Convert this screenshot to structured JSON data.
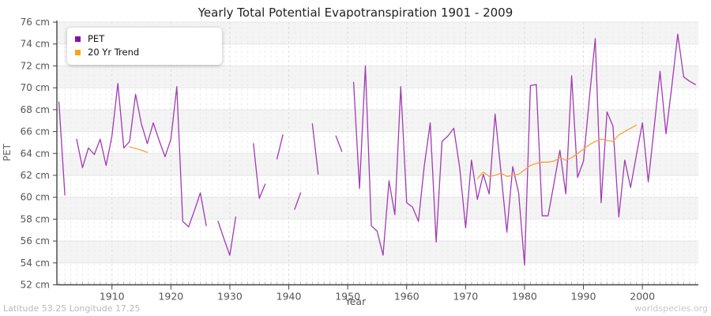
{
  "title": "Yearly Total Potential Evapotranspiration 1901 - 2009",
  "footer": {
    "left": "Latitude 53.25 Longitude 17.25",
    "right": "worldspecies.org"
  },
  "legend": [
    {
      "label": "PET",
      "color": "#8E0DA8"
    },
    {
      "label": "20 Yr Trend",
      "color": "#FFA113"
    }
  ],
  "y_axis": {
    "title": "PET",
    "tick_labels": [
      "76 cm",
      "74 cm",
      "72 cm",
      "70 cm",
      "68 cm",
      "66 cm",
      "64 cm",
      "62 cm",
      "60 cm",
      "58 cm",
      "56 cm",
      "54 cm",
      "52 cm"
    ],
    "tick_values": [
      76,
      74,
      72,
      70,
      68,
      66,
      64,
      62,
      60,
      58,
      56,
      54,
      52
    ]
  },
  "x_axis": {
    "title": "Year",
    "tick_labels": [
      "1910",
      "1920",
      "1930",
      "1940",
      "1950",
      "1960",
      "1970",
      "1980",
      "1990",
      "2000"
    ],
    "tick_values": [
      1910,
      1920,
      1930,
      1940,
      1950,
      1960,
      1970,
      1980,
      1990,
      2000
    ]
  },
  "colors": {
    "pet_line": "#A23AB3",
    "trend_line": "#F9A23A",
    "axis": "#444444",
    "tick_text": "#555555",
    "grid_h": "#e6e6e6",
    "grid_v_minor": "#ececec",
    "grid_v_major": "#dcdcdc",
    "band": "#f4f4f4",
    "minor_tick": "#bbbbbb"
  },
  "chart_data": {
    "type": "line",
    "title": "Yearly Total Potential Evapotranspiration 1901 - 2009",
    "xlabel": "Year",
    "ylabel": "PET",
    "ylim": [
      52,
      76
    ],
    "xlim": [
      1901,
      2009
    ],
    "grid": true,
    "legend_position": "top-left",
    "x_start": 1901,
    "series": [
      {
        "name": "PET",
        "values": [
          68.7,
          60.2,
          null,
          65.3,
          62.7,
          64.5,
          63.9,
          65.3,
          62.9,
          65.6,
          70.4,
          64.5,
          65.1,
          69.4,
          66.7,
          64.9,
          66.8,
          65.2,
          63.7,
          65.3,
          70.1,
          57.8,
          57.3,
          58.8,
          60.4,
          57.4,
          null,
          57.8,
          56.2,
          54.7,
          58.2,
          null,
          null,
          64.9,
          59.9,
          61.2,
          null,
          63.5,
          65.7,
          null,
          58.9,
          60.4,
          null,
          66.7,
          62.1,
          null,
          null,
          65.6,
          64.2,
          null,
          70.5,
          60.8,
          72.0,
          57.4,
          56.9,
          54.7,
          61.5,
          58.4,
          70.1,
          59.5,
          59.1,
          57.8,
          62.9,
          66.8,
          55.9,
          65.1,
          65.6,
          66.3,
          62.7,
          57.2,
          63.4,
          59.8,
          62.1,
          60.3,
          67.6,
          62.3,
          56.8,
          62.8,
          60.4,
          53.8,
          70.2,
          70.3,
          58.3,
          58.3,
          61.3,
          64.3,
          60.3,
          71.1,
          61.8,
          63.3,
          69.0,
          74.5,
          59.5,
          67.8,
          66.5,
          58.2,
          63.4,
          60.9,
          63.9,
          66.8,
          61.4,
          66.4,
          71.5,
          65.8,
          70.2,
          74.9,
          71.0,
          70.6,
          70.3
        ]
      },
      {
        "name": "20 Yr Trend",
        "values": [
          null,
          null,
          null,
          null,
          null,
          null,
          null,
          null,
          null,
          null,
          null,
          null,
          64.6,
          64.45,
          64.3,
          64.1,
          null,
          null,
          null,
          null,
          null,
          null,
          null,
          null,
          null,
          null,
          null,
          null,
          null,
          null,
          null,
          null,
          null,
          null,
          null,
          null,
          null,
          null,
          null,
          null,
          null,
          null,
          null,
          null,
          null,
          null,
          null,
          null,
          null,
          null,
          null,
          null,
          null,
          null,
          null,
          null,
          null,
          null,
          null,
          null,
          null,
          null,
          null,
          null,
          null,
          null,
          null,
          null,
          null,
          null,
          null,
          61.7,
          62.3,
          61.9,
          62.0,
          62.2,
          61.9,
          62.0,
          62.1,
          62.5,
          62.9,
          63.1,
          63.2,
          63.2,
          63.3,
          63.6,
          63.4,
          63.6,
          64.0,
          64.4,
          64.8,
          65.1,
          65.3,
          65.2,
          65.1,
          65.7,
          66.0,
          66.3,
          66.6,
          null,
          null,
          null,
          null,
          null,
          null,
          null,
          null,
          null,
          null
        ]
      }
    ]
  }
}
